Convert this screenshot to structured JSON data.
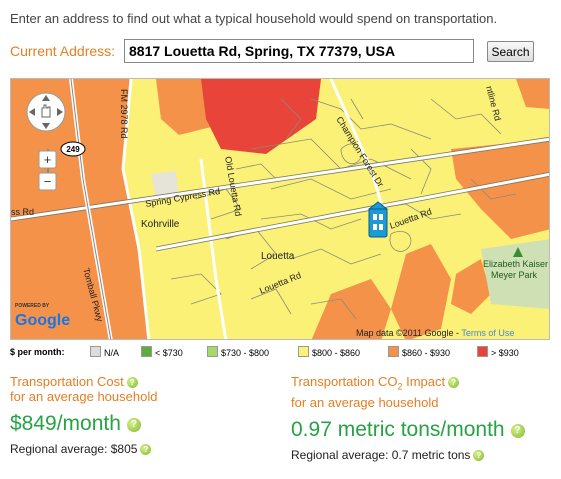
{
  "intro": "Enter an address to find out what a typical household would spend on transportation.",
  "address": {
    "label": "Current Address:",
    "value": "8817 Louetta Rd, Spring, TX 77379, USA",
    "search_label": "Search"
  },
  "map": {
    "labels": {
      "fm2978": "FM 2978 Rd",
      "hwy249": "249",
      "cypress_rd": "ss Rd",
      "spring_cypress": "Spring Cypress Rd",
      "kohrville": "Kohrville",
      "old_louetta": "Old Louetta Rd",
      "champion_forest": "Champion Forest Dr",
      "louetta_rd": "Louetta Rd",
      "louetta": "Louetta",
      "louetta_rd_lower": "Louetta Rd",
      "tomball": "Tomball Pkwy",
      "park_line1": "Elizabeth Kaiser",
      "park_line2": "Meyer Park",
      "online": "ntline Rd",
      "map_data": "Map data ©2011 Google - ",
      "terms": "Terms of Use",
      "powered_by": "POWERED BY",
      "google": "Google"
    },
    "controls": {
      "zoom_in": "+",
      "zoom_out": "−"
    }
  },
  "legend": {
    "title": "$ per month:",
    "items": [
      {
        "label": "N/A",
        "color": "#dddddd"
      },
      {
        "label": "< $730",
        "color": "#5cad3c"
      },
      {
        "label": "$730 - $800",
        "color": "#a6d96a"
      },
      {
        "label": "$800 - $860",
        "color": "#fbf176"
      },
      {
        "label": "$860 - $930",
        "color": "#f4924a"
      },
      {
        "label": "> $930",
        "color": "#e8443a"
      }
    ]
  },
  "cost": {
    "label_line1": "Transportation Cost",
    "label_line2": "for an average household",
    "value": "$849/month",
    "regional": "Regional average: $805"
  },
  "co2": {
    "label_prefix": "Transportation CO",
    "label_sub": "2",
    "label_suffix": " Impact",
    "label_line2": "for an average household",
    "value": "0.97 metric tons/month",
    "regional": "Regional average: 0.7 metric tons"
  },
  "help_glyph": "?"
}
